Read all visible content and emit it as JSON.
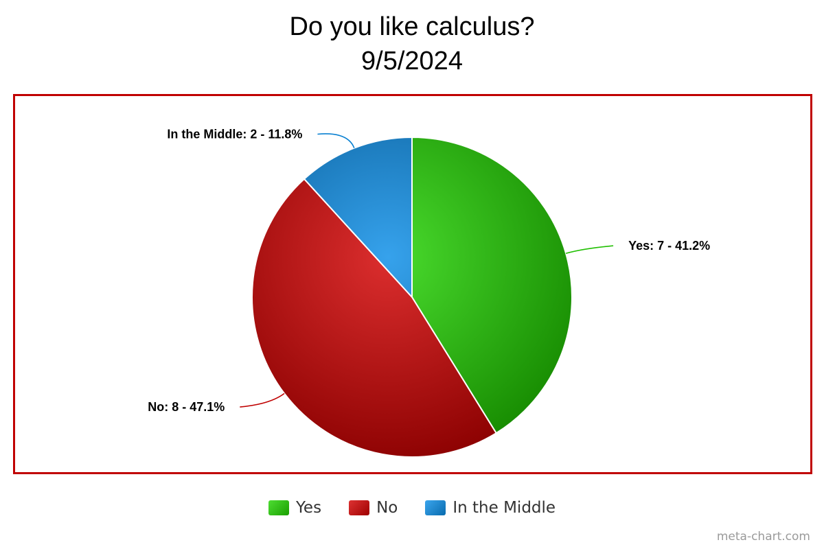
{
  "chart_data": {
    "type": "pie",
    "title": "Do you like calculus?",
    "subtitle": "9/5/2024",
    "slices": [
      {
        "name": "Yes",
        "value": 7,
        "percent": 41.2,
        "label": "Yes: 7 - 41.2%",
        "color": "#22d400"
      },
      {
        "name": "No",
        "value": 8,
        "percent": 47.1,
        "label": "No: 8 - 47.1%",
        "color": "#d40000"
      },
      {
        "name": "In the Middle",
        "value": 2,
        "percent": 11.8,
        "label": "In the Middle: 2 - 11.8%",
        "color": "#0a8ee8"
      }
    ],
    "legend": {
      "placement": "bottom-center",
      "entries": [
        "Yes",
        "No",
        "In the Middle"
      ]
    },
    "start_angle_from_top_clockwise_deg": 0,
    "frame_color": "#c00000"
  },
  "watermark": "meta-chart.com"
}
